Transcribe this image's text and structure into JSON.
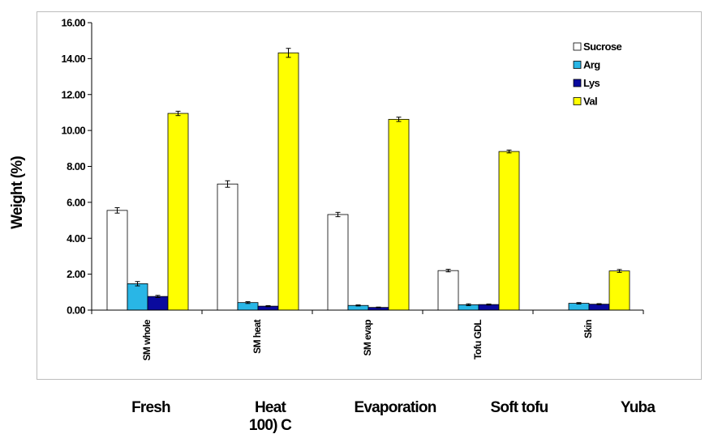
{
  "chart_data": {
    "type": "bar",
    "title": "",
    "ylabel": "Weight (%)",
    "xlabel": "",
    "ylim": [
      0,
      16
    ],
    "ytick_step": 2,
    "ytick_labels": [
      "0.00",
      "2.00",
      "4.00",
      "6.00",
      "8.00",
      "10.00",
      "12.00",
      "14.00",
      "16.00"
    ],
    "grid": false,
    "legend_position": "top-right",
    "categories": [
      "SM whole",
      "SM heat",
      "SM evap",
      "Tofu GDL",
      "Skin"
    ],
    "group_labels": [
      "Fresh",
      "Heat 100) C",
      "Evaporation",
      "Soft tofu",
      "Yuba"
    ],
    "series": [
      {
        "name": "Sucrose",
        "color": "#ffffff",
        "values": [
          5.55,
          7.02,
          5.32,
          2.2,
          0.0
        ],
        "errors": [
          0.15,
          0.18,
          0.12,
          0.07,
          0.0
        ]
      },
      {
        "name": "Arg",
        "color": "#29b6e6",
        "values": [
          1.47,
          0.42,
          0.26,
          0.3,
          0.38
        ],
        "errors": [
          0.12,
          0.05,
          0.03,
          0.05,
          0.04
        ]
      },
      {
        "name": "Lys",
        "color": "#0a0a9e",
        "values": [
          0.76,
          0.22,
          0.15,
          0.31,
          0.33
        ],
        "errors": [
          0.06,
          0.03,
          0.02,
          0.03,
          0.03
        ]
      },
      {
        "name": "Val",
        "color": "#ffff00",
        "values": [
          10.95,
          14.32,
          10.62,
          8.83,
          2.18
        ],
        "errors": [
          0.12,
          0.25,
          0.12,
          0.08,
          0.08
        ]
      }
    ]
  }
}
